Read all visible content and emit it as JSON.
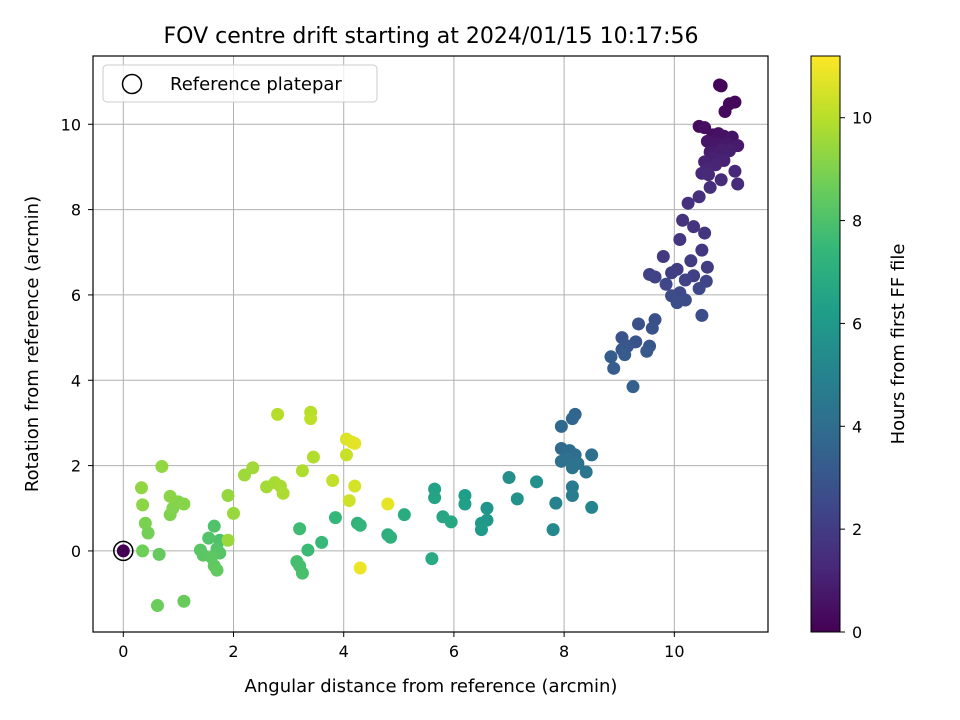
{
  "chart_data": {
    "type": "scatter",
    "title": "FOV centre drift starting at 2024/01/15 10:17:56",
    "xlabel": "Angular distance from reference (arcmin)",
    "ylabel": "Rotation from reference (arcmin)",
    "xlim": [
      -0.55,
      11.7
    ],
    "ylim": [
      -1.9,
      11.6
    ],
    "x_ticks": [
      0,
      2,
      4,
      6,
      8,
      10
    ],
    "y_ticks": [
      0,
      2,
      4,
      6,
      8,
      10
    ],
    "grid": true,
    "legend": {
      "placement": "top-left",
      "entries": [
        "Reference platepar"
      ]
    },
    "colorbar": {
      "label": "Hours from first FF file",
      "range": [
        0,
        11.2
      ],
      "ticks": [
        0,
        2,
        4,
        6,
        8,
        10
      ],
      "colormap": [
        "#440154",
        "#482878",
        "#3e4989",
        "#31688e",
        "#26828e",
        "#1f9e89",
        "#35b779",
        "#6ece58",
        "#b5de2b",
        "#fde725"
      ]
    },
    "reference": {
      "x": 0,
      "y": 0
    },
    "points": [
      {
        "x": 0.0,
        "y": 0.0,
        "c": 0.0
      },
      {
        "x": 10.82,
        "y": 10.92,
        "c": 0.1
      },
      {
        "x": 10.85,
        "y": 10.9,
        "c": 0.15
      },
      {
        "x": 11.1,
        "y": 10.52,
        "c": 0.2
      },
      {
        "x": 11.0,
        "y": 10.48,
        "c": 0.25
      },
      {
        "x": 10.92,
        "y": 10.3,
        "c": 0.3
      },
      {
        "x": 10.45,
        "y": 9.95,
        "c": 0.35
      },
      {
        "x": 10.55,
        "y": 9.92,
        "c": 0.4
      },
      {
        "x": 10.7,
        "y": 9.75,
        "c": 0.45
      },
      {
        "x": 10.8,
        "y": 9.78,
        "c": 0.5
      },
      {
        "x": 10.9,
        "y": 9.72,
        "c": 0.55
      },
      {
        "x": 11.05,
        "y": 9.7,
        "c": 0.6
      },
      {
        "x": 10.6,
        "y": 9.6,
        "c": 0.65
      },
      {
        "x": 10.75,
        "y": 9.55,
        "c": 0.7
      },
      {
        "x": 10.95,
        "y": 9.55,
        "c": 0.75
      },
      {
        "x": 11.15,
        "y": 9.5,
        "c": 0.8
      },
      {
        "x": 10.65,
        "y": 9.35,
        "c": 0.85
      },
      {
        "x": 10.85,
        "y": 9.4,
        "c": 0.9
      },
      {
        "x": 11.0,
        "y": 9.38,
        "c": 0.95
      },
      {
        "x": 10.7,
        "y": 9.2,
        "c": 1.0
      },
      {
        "x": 10.55,
        "y": 9.12,
        "c": 1.05
      },
      {
        "x": 10.9,
        "y": 9.15,
        "c": 1.1
      },
      {
        "x": 10.75,
        "y": 9.05,
        "c": 1.15
      },
      {
        "x": 10.6,
        "y": 8.95,
        "c": 1.2
      },
      {
        "x": 10.5,
        "y": 8.85,
        "c": 1.25
      },
      {
        "x": 11.1,
        "y": 8.9,
        "c": 1.3
      },
      {
        "x": 10.62,
        "y": 8.82,
        "c": 1.35
      },
      {
        "x": 10.85,
        "y": 8.7,
        "c": 1.4
      },
      {
        "x": 11.15,
        "y": 8.6,
        "c": 1.45
      },
      {
        "x": 10.65,
        "y": 8.52,
        "c": 1.5
      },
      {
        "x": 10.45,
        "y": 8.3,
        "c": 1.55
      },
      {
        "x": 10.25,
        "y": 8.15,
        "c": 1.6
      },
      {
        "x": 10.15,
        "y": 7.75,
        "c": 1.65
      },
      {
        "x": 10.35,
        "y": 7.6,
        "c": 1.7
      },
      {
        "x": 10.55,
        "y": 7.45,
        "c": 1.75
      },
      {
        "x": 10.1,
        "y": 7.3,
        "c": 1.8
      },
      {
        "x": 10.5,
        "y": 7.05,
        "c": 1.85
      },
      {
        "x": 9.8,
        "y": 6.9,
        "c": 1.9
      },
      {
        "x": 10.3,
        "y": 6.8,
        "c": 1.95
      },
      {
        "x": 10.6,
        "y": 6.65,
        "c": 2.0
      },
      {
        "x": 10.05,
        "y": 6.6,
        "c": 2.05
      },
      {
        "x": 9.95,
        "y": 6.52,
        "c": 2.1
      },
      {
        "x": 10.35,
        "y": 6.45,
        "c": 2.15
      },
      {
        "x": 9.55,
        "y": 6.48,
        "c": 2.2
      },
      {
        "x": 9.65,
        "y": 6.42,
        "c": 2.25
      },
      {
        "x": 10.2,
        "y": 6.35,
        "c": 2.3
      },
      {
        "x": 10.58,
        "y": 6.32,
        "c": 2.35
      },
      {
        "x": 9.85,
        "y": 6.25,
        "c": 2.4
      },
      {
        "x": 10.45,
        "y": 6.15,
        "c": 2.45
      },
      {
        "x": 10.1,
        "y": 6.05,
        "c": 2.5
      },
      {
        "x": 9.95,
        "y": 5.98,
        "c": 2.55
      },
      {
        "x": 10.2,
        "y": 5.88,
        "c": 2.6
      },
      {
        "x": 10.05,
        "y": 5.82,
        "c": 2.65
      },
      {
        "x": 10.5,
        "y": 5.52,
        "c": 2.7
      },
      {
        "x": 9.65,
        "y": 5.42,
        "c": 2.75
      },
      {
        "x": 9.35,
        "y": 5.32,
        "c": 2.8
      },
      {
        "x": 9.6,
        "y": 5.22,
        "c": 2.85
      },
      {
        "x": 9.05,
        "y": 5.0,
        "c": 2.9
      },
      {
        "x": 9.3,
        "y": 4.9,
        "c": 2.95
      },
      {
        "x": 9.15,
        "y": 4.8,
        "c": 3.0
      },
      {
        "x": 9.55,
        "y": 4.8,
        "c": 3.05
      },
      {
        "x": 9.05,
        "y": 4.72,
        "c": 3.1
      },
      {
        "x": 9.5,
        "y": 4.68,
        "c": 3.15
      },
      {
        "x": 9.1,
        "y": 4.6,
        "c": 3.2
      },
      {
        "x": 8.85,
        "y": 4.55,
        "c": 3.25
      },
      {
        "x": 8.9,
        "y": 4.28,
        "c": 3.3
      },
      {
        "x": 9.25,
        "y": 3.85,
        "c": 3.4
      },
      {
        "x": 8.2,
        "y": 3.2,
        "c": 3.6
      },
      {
        "x": 8.15,
        "y": 3.1,
        "c": 3.7
      },
      {
        "x": 7.95,
        "y": 2.92,
        "c": 3.8
      },
      {
        "x": 7.95,
        "y": 2.4,
        "c": 3.9
      },
      {
        "x": 8.1,
        "y": 2.35,
        "c": 3.95
      },
      {
        "x": 8.2,
        "y": 2.25,
        "c": 4.0
      },
      {
        "x": 8.5,
        "y": 2.25,
        "c": 4.05
      },
      {
        "x": 8.05,
        "y": 2.15,
        "c": 4.1
      },
      {
        "x": 7.95,
        "y": 2.1,
        "c": 4.15
      },
      {
        "x": 8.25,
        "y": 2.05,
        "c": 4.2
      },
      {
        "x": 8.15,
        "y": 1.95,
        "c": 4.3
      },
      {
        "x": 8.4,
        "y": 1.85,
        "c": 4.4
      },
      {
        "x": 8.15,
        "y": 1.5,
        "c": 4.6
      },
      {
        "x": 8.15,
        "y": 1.3,
        "c": 4.8
      },
      {
        "x": 7.85,
        "y": 1.12,
        "c": 5.0
      },
      {
        "x": 8.5,
        "y": 1.02,
        "c": 5.1
      },
      {
        "x": 7.8,
        "y": 0.5,
        "c": 5.3
      },
      {
        "x": 7.0,
        "y": 1.72,
        "c": 5.5
      },
      {
        "x": 7.5,
        "y": 1.62,
        "c": 5.6
      },
      {
        "x": 7.15,
        "y": 1.22,
        "c": 5.7
      },
      {
        "x": 6.6,
        "y": 1.0,
        "c": 5.8
      },
      {
        "x": 6.6,
        "y": 0.72,
        "c": 5.9
      },
      {
        "x": 6.5,
        "y": 0.65,
        "c": 6.0
      },
      {
        "x": 6.5,
        "y": 0.5,
        "c": 6.1
      },
      {
        "x": 6.2,
        "y": 1.3,
        "c": 6.2
      },
      {
        "x": 6.2,
        "y": 1.1,
        "c": 6.3
      },
      {
        "x": 5.65,
        "y": 1.45,
        "c": 6.4
      },
      {
        "x": 5.65,
        "y": 1.25,
        "c": 6.5
      },
      {
        "x": 5.8,
        "y": 0.8,
        "c": 6.6
      },
      {
        "x": 5.95,
        "y": 0.68,
        "c": 6.7
      },
      {
        "x": 5.6,
        "y": -0.18,
        "c": 6.8
      },
      {
        "x": 5.1,
        "y": 0.85,
        "c": 6.9
      },
      {
        "x": 4.8,
        "y": 0.38,
        "c": 7.0
      },
      {
        "x": 4.85,
        "y": 0.32,
        "c": 7.1
      },
      {
        "x": 4.25,
        "y": 0.65,
        "c": 7.2
      },
      {
        "x": 4.3,
        "y": 0.6,
        "c": 7.3
      },
      {
        "x": 3.85,
        "y": 0.78,
        "c": 7.4
      },
      {
        "x": 3.6,
        "y": 0.2,
        "c": 7.5
      },
      {
        "x": 3.35,
        "y": 0.02,
        "c": 7.6
      },
      {
        "x": 3.2,
        "y": 0.52,
        "c": 7.7
      },
      {
        "x": 3.15,
        "y": -0.25,
        "c": 7.8
      },
      {
        "x": 3.2,
        "y": -0.35,
        "c": 7.85
      },
      {
        "x": 3.25,
        "y": -0.52,
        "c": 7.9
      },
      {
        "x": 1.75,
        "y": 0.25,
        "c": 8.0
      },
      {
        "x": 1.65,
        "y": 0.58,
        "c": 8.05
      },
      {
        "x": 1.55,
        "y": 0.3,
        "c": 8.1
      },
      {
        "x": 1.7,
        "y": 0.05,
        "c": 8.15
      },
      {
        "x": 1.75,
        "y": -0.05,
        "c": 8.2
      },
      {
        "x": 1.4,
        "y": 0.02,
        "c": 8.25
      },
      {
        "x": 1.45,
        "y": -0.1,
        "c": 8.3
      },
      {
        "x": 1.6,
        "y": -0.15,
        "c": 8.35
      },
      {
        "x": 1.65,
        "y": -0.35,
        "c": 8.4
      },
      {
        "x": 1.7,
        "y": -0.45,
        "c": 8.45
      },
      {
        "x": 0.65,
        "y": -0.08,
        "c": 8.5
      },
      {
        "x": 1.1,
        "y": -1.18,
        "c": 8.55
      },
      {
        "x": 0.62,
        "y": -1.28,
        "c": 8.6
      },
      {
        "x": 0.35,
        "y": 0.0,
        "c": 8.7
      },
      {
        "x": 0.45,
        "y": 0.42,
        "c": 8.8
      },
      {
        "x": 0.4,
        "y": 0.65,
        "c": 8.9
      },
      {
        "x": 0.85,
        "y": 0.85,
        "c": 9.0
      },
      {
        "x": 0.9,
        "y": 1.0,
        "c": 9.05
      },
      {
        "x": 1.0,
        "y": 1.15,
        "c": 9.1
      },
      {
        "x": 1.1,
        "y": 1.1,
        "c": 9.15
      },
      {
        "x": 0.85,
        "y": 1.28,
        "c": 9.2
      },
      {
        "x": 0.35,
        "y": 1.08,
        "c": 9.25
      },
      {
        "x": 0.33,
        "y": 1.48,
        "c": 9.3
      },
      {
        "x": 0.7,
        "y": 1.98,
        "c": 9.35
      },
      {
        "x": 1.9,
        "y": 1.3,
        "c": 9.4
      },
      {
        "x": 2.0,
        "y": 0.88,
        "c": 9.45
      },
      {
        "x": 1.9,
        "y": 0.25,
        "c": 9.5
      },
      {
        "x": 2.2,
        "y": 1.78,
        "c": 9.55
      },
      {
        "x": 2.35,
        "y": 1.95,
        "c": 9.6
      },
      {
        "x": 2.6,
        "y": 1.5,
        "c": 9.65
      },
      {
        "x": 2.75,
        "y": 1.6,
        "c": 9.7
      },
      {
        "x": 2.85,
        "y": 1.52,
        "c": 9.75
      },
      {
        "x": 2.9,
        "y": 1.35,
        "c": 9.8
      },
      {
        "x": 3.25,
        "y": 1.88,
        "c": 9.85
      },
      {
        "x": 3.45,
        "y": 2.2,
        "c": 9.9
      },
      {
        "x": 2.8,
        "y": 3.2,
        "c": 9.95
      },
      {
        "x": 3.4,
        "y": 3.25,
        "c": 10.0
      },
      {
        "x": 3.4,
        "y": 3.1,
        "c": 10.1
      },
      {
        "x": 3.8,
        "y": 1.65,
        "c": 10.2
      },
      {
        "x": 4.05,
        "y": 2.25,
        "c": 10.3
      },
      {
        "x": 4.1,
        "y": 1.18,
        "c": 10.4
      },
      {
        "x": 4.2,
        "y": 1.52,
        "c": 10.5
      },
      {
        "x": 4.05,
        "y": 2.62,
        "c": 10.6
      },
      {
        "x": 4.15,
        "y": 2.55,
        "c": 10.7
      },
      {
        "x": 4.2,
        "y": 2.52,
        "c": 10.75
      },
      {
        "x": 4.8,
        "y": 1.1,
        "c": 10.8
      },
      {
        "x": 4.3,
        "y": -0.4,
        "c": 10.9
      }
    ]
  }
}
